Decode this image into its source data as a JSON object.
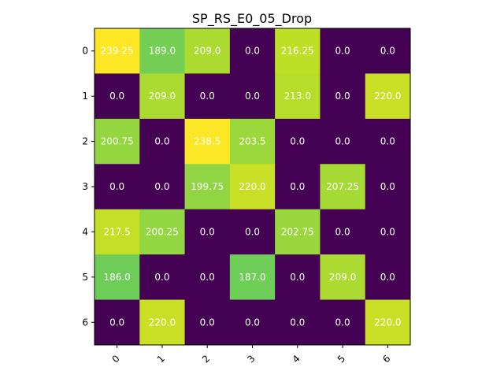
{
  "chart_data": {
    "type": "heatmap",
    "title": "SP_RS_E0_05_Drop",
    "xlabel": "",
    "ylabel": "",
    "x_ticks": [
      "0",
      "1",
      "2",
      "3",
      "4",
      "5",
      "6"
    ],
    "y_ticks": [
      "0",
      "1",
      "2",
      "3",
      "4",
      "5",
      "6"
    ],
    "rows": [
      [
        239.25,
        189.0,
        209.0,
        0.0,
        216.25,
        0.0,
        0.0
      ],
      [
        0.0,
        209.0,
        0.0,
        0.0,
        213.0,
        0.0,
        220.0
      ],
      [
        200.75,
        0.0,
        238.5,
        203.5,
        0.0,
        0.0,
        0.0
      ],
      [
        0.0,
        0.0,
        199.75,
        220.0,
        0.0,
        207.25,
        0.0
      ],
      [
        217.5,
        200.25,
        0.0,
        0.0,
        202.75,
        0.0,
        0.0
      ],
      [
        186.0,
        0.0,
        0.0,
        187.0,
        0.0,
        209.0,
        0.0
      ],
      [
        0.0,
        220.0,
        0.0,
        0.0,
        0.0,
        0.0,
        220.0
      ]
    ],
    "cell_labels": [
      [
        "239.25",
        "189.0",
        "209.0",
        "0.0",
        "216.25",
        "0.0",
        "0.0"
      ],
      [
        "0.0",
        "209.0",
        "0.0",
        "0.0",
        "213.0",
        "0.0",
        "220.0"
      ],
      [
        "200.75",
        "0.0",
        "238.5",
        "203.5",
        "0.0",
        "0.0",
        "0.0"
      ],
      [
        "0.0",
        "0.0",
        "199.75",
        "220.0",
        "0.0",
        "207.25",
        "0.0"
      ],
      [
        "217.5",
        "200.25",
        "0.0",
        "0.0",
        "202.75",
        "0.0",
        "0.0"
      ],
      [
        "186.0",
        "0.0",
        "0.0",
        "187.0",
        "0.0",
        "209.0",
        "0.0"
      ],
      [
        "0.0",
        "220.0",
        "0.0",
        "0.0",
        "0.0",
        "0.0",
        "220.0"
      ]
    ],
    "colormap": "viridis",
    "value_range": [
      0,
      239.25
    ],
    "x_tick_rotation_deg": 45,
    "grid": false,
    "colorbar": false
  }
}
